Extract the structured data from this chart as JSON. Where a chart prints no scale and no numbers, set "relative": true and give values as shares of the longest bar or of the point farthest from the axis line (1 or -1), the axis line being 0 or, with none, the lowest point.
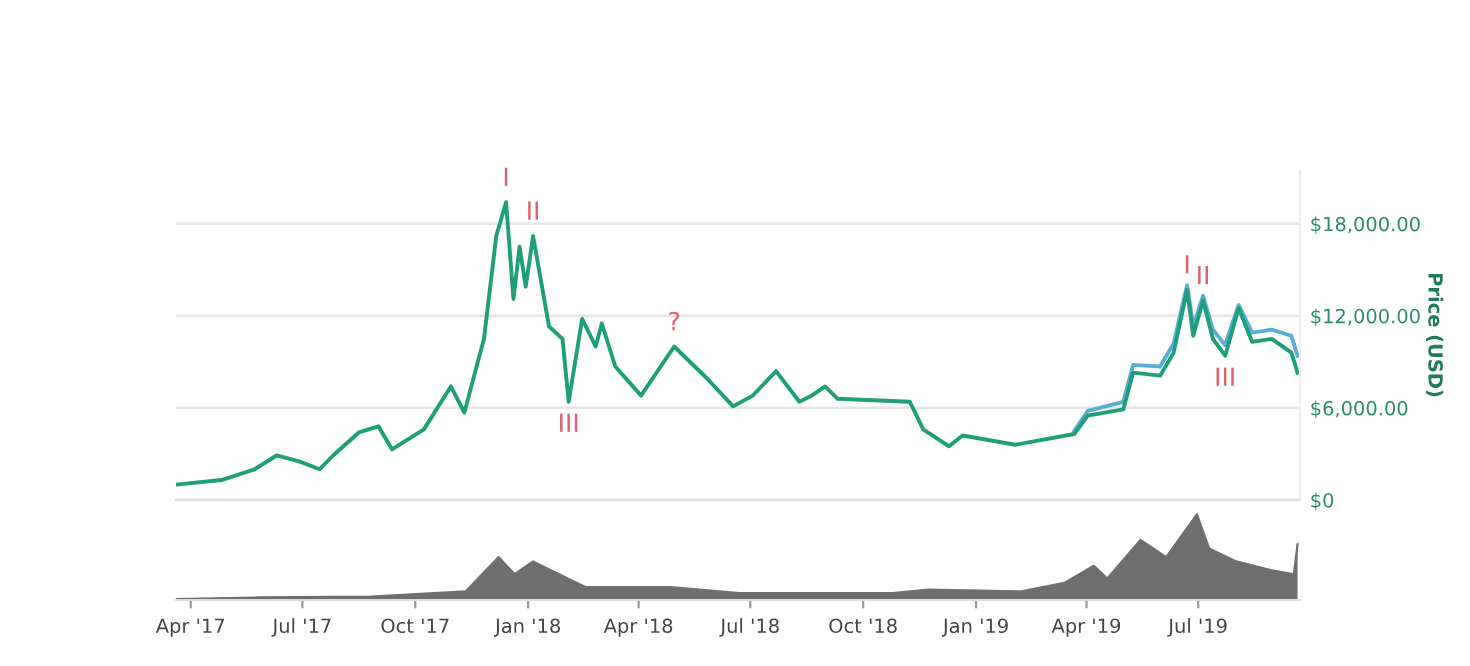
{
  "chart_data": [
    {
      "type": "line",
      "ylabel": "Price (USD)",
      "xlim": [
        "2017-03-20",
        "2019-09-22"
      ],
      "ylim": [
        0,
        21500
      ],
      "yticks": [
        {
          "value": 0,
          "label": "$0"
        },
        {
          "value": 6000,
          "label": "$6,000.00"
        },
        {
          "value": 12000,
          "label": "$12,000.00"
        },
        {
          "value": 18000,
          "label": "$18,000.00"
        }
      ],
      "tick_labels": "y",
      "grid": "y",
      "legend": false,
      "marker": "none",
      "line_style": "solid",
      "series": [
        {
          "color": "#5aaed6",
          "x": [
            "2019-03-22",
            "2019-04-02",
            "2019-05-01",
            "2019-05-09",
            "2019-05-31",
            "2019-06-11",
            "2019-06-22",
            "2019-06-27",
            "2019-07-05",
            "2019-07-13",
            "2019-07-23",
            "2019-08-03",
            "2019-08-14",
            "2019-08-30",
            "2019-09-15",
            "2019-09-20"
          ],
          "values": [
            4500,
            5800,
            6400,
            8800,
            8700,
            10200,
            14000,
            11300,
            13300,
            11100,
            10100,
            12700,
            10900,
            11100,
            10700,
            9400
          ]
        },
        {
          "color": "#1e9e79",
          "x": [
            "2017-03-20",
            "2017-04-26",
            "2017-05-23",
            "2017-06-10",
            "2017-06-29",
            "2017-07-15",
            "2017-07-26",
            "2017-08-16",
            "2017-09-01",
            "2017-09-12",
            "2017-10-08",
            "2017-10-30",
            "2017-11-10",
            "2017-11-26",
            "2017-12-06",
            "2017-12-14",
            "2017-12-20",
            "2017-12-25",
            "2017-12-30",
            "2018-01-05",
            "2018-01-18",
            "2018-01-29",
            "2018-02-03",
            "2018-02-14",
            "2018-02-25",
            "2018-03-02",
            "2018-03-13",
            "2018-04-03",
            "2018-04-30",
            "2018-05-27",
            "2018-06-17",
            "2018-07-03",
            "2018-07-22",
            "2018-08-10",
            "2018-08-20",
            "2018-08-31",
            "2018-09-10",
            "2018-11-08",
            "2018-11-19",
            "2018-12-10",
            "2018-12-21",
            "2019-02-02",
            "2019-03-22",
            "2019-04-02",
            "2019-05-01",
            "2019-05-09",
            "2019-05-31",
            "2019-06-11",
            "2019-06-22",
            "2019-06-27",
            "2019-07-05",
            "2019-07-13",
            "2019-07-23",
            "2019-08-03",
            "2019-08-14",
            "2019-08-30",
            "2019-09-15",
            "2019-09-20"
          ],
          "values": [
            1000,
            1300,
            2000,
            2900,
            2500,
            2000,
            2900,
            4400,
            4800,
            3300,
            4600,
            7400,
            5700,
            10500,
            17200,
            19400,
            13100,
            16500,
            13900,
            17200,
            11300,
            10500,
            6400,
            11800,
            10000,
            11500,
            8700,
            6800,
            10000,
            7900,
            6100,
            6800,
            8400,
            6400,
            6800,
            7400,
            6600,
            6400,
            4600,
            3500,
            4200,
            3600,
            4300,
            5500,
            5900,
            8300,
            8100,
            9600,
            13700,
            10700,
            13000,
            10500,
            9400,
            12500,
            10300,
            10500,
            9600,
            8300
          ]
        }
      ],
      "annotations": [
        {
          "text": "I",
          "x": "2017-12-14",
          "y": 19400
        },
        {
          "text": "II",
          "x": "2018-01-05",
          "y": 17200
        },
        {
          "text": "III",
          "x": "2018-02-03",
          "y": 6400
        },
        {
          "text": "?",
          "x": "2018-04-30",
          "y": 10000
        },
        {
          "text": "I",
          "x": "2019-06-22",
          "y": 13700
        },
        {
          "text": "II",
          "x": "2019-07-05",
          "y": 13000
        },
        {
          "text": "III",
          "x": "2019-07-23",
          "y": 9400
        }
      ]
    },
    {
      "type": "area",
      "relative": true,
      "xlim": [
        "2017-03-20",
        "2019-09-22"
      ],
      "xticks": [
        {
          "value": "2017-04-01",
          "label": "Apr '17"
        },
        {
          "value": "2017-07-01",
          "label": "Jul '17"
        },
        {
          "value": "2017-10-01",
          "label": "Oct '17"
        },
        {
          "value": "2018-01-01",
          "label": "Jan '18"
        },
        {
          "value": "2018-04-01",
          "label": "Apr '18"
        },
        {
          "value": "2018-07-01",
          "label": "Jul '18"
        },
        {
          "value": "2018-10-01",
          "label": "Oct '18"
        },
        {
          "value": "2019-01-01",
          "label": "Jan '19"
        },
        {
          "value": "2019-04-01",
          "label": "Apr '19"
        },
        {
          "value": "2019-07-01",
          "label": "Jul '19"
        }
      ],
      "tick_labels": "x",
      "grid": false,
      "legend": false,
      "series": [
        {
          "color": "#6e6e6e",
          "x": [
            "2017-03-20",
            "2017-05-27",
            "2017-08-26",
            "2017-11-11",
            "2017-12-08",
            "2017-12-21",
            "2018-01-05",
            "2018-01-19",
            "2018-02-17",
            "2018-04-27",
            "2018-06-22",
            "2018-10-25",
            "2018-11-23",
            "2019-02-07",
            "2019-03-14",
            "2019-04-07",
            "2019-04-18",
            "2019-05-15",
            "2019-06-05",
            "2019-06-30",
            "2019-07-10",
            "2019-08-01",
            "2019-08-29",
            "2019-09-17",
            "2019-09-20"
          ],
          "values": [
            0.01,
            0.03,
            0.04,
            0.1,
            0.5,
            0.3,
            0.45,
            0.35,
            0.15,
            0.15,
            0.08,
            0.08,
            0.12,
            0.1,
            0.2,
            0.4,
            0.25,
            0.7,
            0.5,
            1.0,
            0.6,
            0.45,
            0.35,
            0.3,
            0.65
          ]
        }
      ]
    }
  ]
}
